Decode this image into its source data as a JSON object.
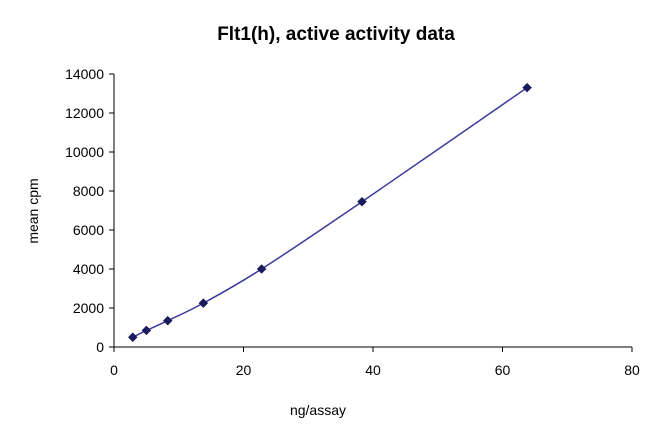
{
  "chart_data": {
    "type": "scatter",
    "title": "Flt1(h), active activity data",
    "xlabel": "ng/assay",
    "ylabel": "mean cpm",
    "xlim": [
      0,
      80
    ],
    "ylim": [
      0,
      14000
    ],
    "x_ticks": [
      0,
      20,
      40,
      60,
      80
    ],
    "y_ticks": [
      0,
      2000,
      4000,
      6000,
      8000,
      10000,
      12000,
      14000
    ],
    "grid": false,
    "legend": "none",
    "series": [
      {
        "x": [
          2.9,
          5.0,
          8.3,
          13.8,
          22.8,
          38.3,
          63.8
        ],
        "y": [
          500,
          850,
          1350,
          2250,
          4000,
          7450,
          13300
        ],
        "marker": "diamond",
        "color": "#1a1a5e",
        "line_color": "#3b3b9c",
        "line_style": "smooth"
      }
    ]
  }
}
